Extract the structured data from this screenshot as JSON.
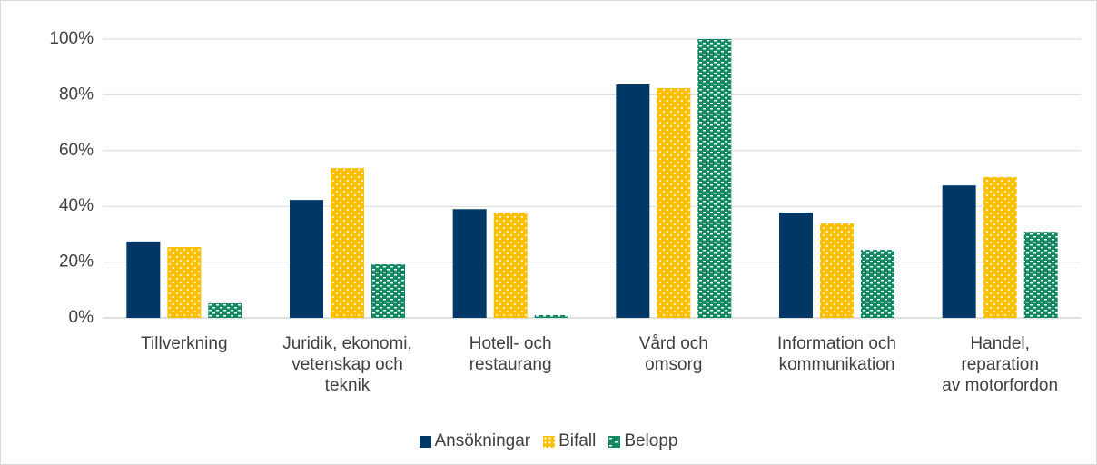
{
  "chart_data": {
    "type": "bar",
    "categories": [
      "Tillverkning",
      "Juridik, ekonomi,\nvetenskap och\nteknik",
      "Hotell- och\nrestaurang",
      "Vård och\nomsorg",
      "Information och\nkommunikation",
      "Handel,\nreparation\nav motorfordon"
    ],
    "series": [
      {
        "name": "Ansökningar",
        "color": "#003865",
        "values": [
          27.4,
          42.3,
          39,
          83.7,
          37.8,
          47.5
        ]
      },
      {
        "name": "Bifall",
        "color": "#ffc000",
        "values": [
          25.4,
          53.7,
          37.8,
          82.4,
          33.9,
          50.5
        ]
      },
      {
        "name": "Belopp",
        "color": "#138a63",
        "values": [
          5.2,
          19.2,
          1,
          100,
          24.4,
          30.9
        ]
      }
    ],
    "ylim": [
      0,
      100
    ],
    "yticks": [
      {
        "value": 0,
        "label": "0%"
      },
      {
        "value": 20,
        "label": "20%"
      },
      {
        "value": 40,
        "label": "40%"
      },
      {
        "value": 60,
        "label": "60%"
      },
      {
        "value": 80,
        "label": "80%"
      },
      {
        "value": 100,
        "label": "100%"
      }
    ],
    "grid": true,
    "legend": "bottom"
  }
}
